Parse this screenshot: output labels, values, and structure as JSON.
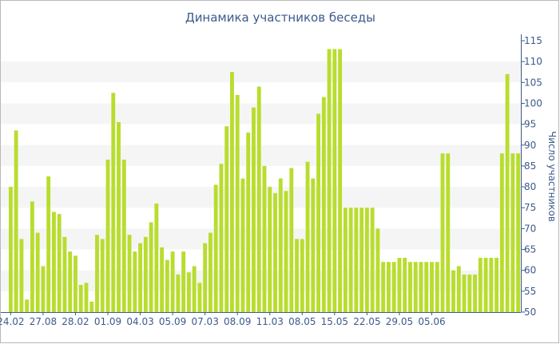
{
  "chart_data": {
    "type": "bar",
    "title": "Динамика участников беседы",
    "xlabel": "",
    "ylabel": "Число участников",
    "ylim": [
      50,
      115
    ],
    "yticks": [
      50,
      55,
      60,
      65,
      70,
      75,
      80,
      85,
      90,
      95,
      100,
      105,
      110,
      115
    ],
    "y_axis_side": "right",
    "grid": "horizontal alternating bands",
    "bar_color": "#b8dd2e",
    "band_color": "#f5f5f5",
    "text_color": "#3c5a8c",
    "xtick_labels": [
      "24.02",
      "27.08",
      "28.02",
      "01.09",
      "04.03",
      "05.09",
      "07.03",
      "08.09",
      "11.03",
      "08.05",
      "15.05",
      "22.05",
      "29.05",
      "05.06"
    ],
    "xtick_positions": [
      0,
      6,
      12,
      18,
      24,
      30,
      36,
      42,
      48,
      54,
      60,
      66,
      72,
      78
    ],
    "values": [
      80,
      93.5,
      67.5,
      53,
      76.5,
      69,
      61,
      82.5,
      74,
      73.5,
      68,
      64.5,
      63.5,
      56.5,
      57,
      52.5,
      68.5,
      67.5,
      86.5,
      102.5,
      95.5,
      86.5,
      68.5,
      64.5,
      66.5,
      68,
      71.5,
      76,
      65.5,
      62.5,
      64.5,
      59,
      64.5,
      59.5,
      61,
      57,
      66.5,
      69,
      80.5,
      85.5,
      94.5,
      107.5,
      102,
      82,
      93,
      99,
      104,
      85,
      80,
      78.5,
      82,
      79,
      84.5,
      67.5,
      67.5,
      86,
      82,
      97.5,
      101.5,
      113,
      113,
      113,
      75,
      75,
      75,
      75,
      75,
      75,
      70,
      62,
      62,
      62,
      63,
      63,
      62,
      62,
      62,
      62,
      62,
      62,
      88,
      88,
      60,
      61,
      59,
      59,
      59,
      63,
      63,
      63,
      63,
      88,
      107,
      88,
      88
    ]
  }
}
